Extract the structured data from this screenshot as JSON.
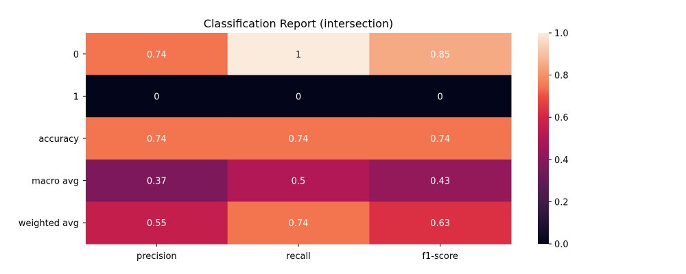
{
  "chart_data": {
    "type": "heatmap",
    "title": "Classification Report (intersection)",
    "x_categories": [
      "precision",
      "recall",
      "f1-score"
    ],
    "y_categories": [
      "0",
      "1",
      "accuracy",
      "macro avg",
      "weighted avg"
    ],
    "values": [
      [
        0.74,
        1,
        0.85
      ],
      [
        0,
        0,
        0
      ],
      [
        0.74,
        0.74,
        0.74
      ],
      [
        0.37,
        0.5,
        0.43
      ],
      [
        0.55,
        0.74,
        0.63
      ]
    ],
    "annotations": [
      [
        "0.74",
        "1",
        "0.85"
      ],
      [
        "0",
        "0",
        "0"
      ],
      [
        "0.74",
        "0.74",
        "0.74"
      ],
      [
        "0.37",
        "0.5",
        "0.43"
      ],
      [
        "0.55",
        "0.74",
        "0.63"
      ]
    ],
    "colorbar": {
      "range": [
        0,
        1
      ],
      "ticks": [
        "0.0",
        "0.2",
        "0.4",
        "0.6",
        "0.8",
        "1.0"
      ],
      "colormap": "rocket"
    },
    "xlabel": "",
    "ylabel": "",
    "grid": false,
    "annotation_colors": {
      "light": "#ffffff",
      "dark": "#262626"
    }
  }
}
